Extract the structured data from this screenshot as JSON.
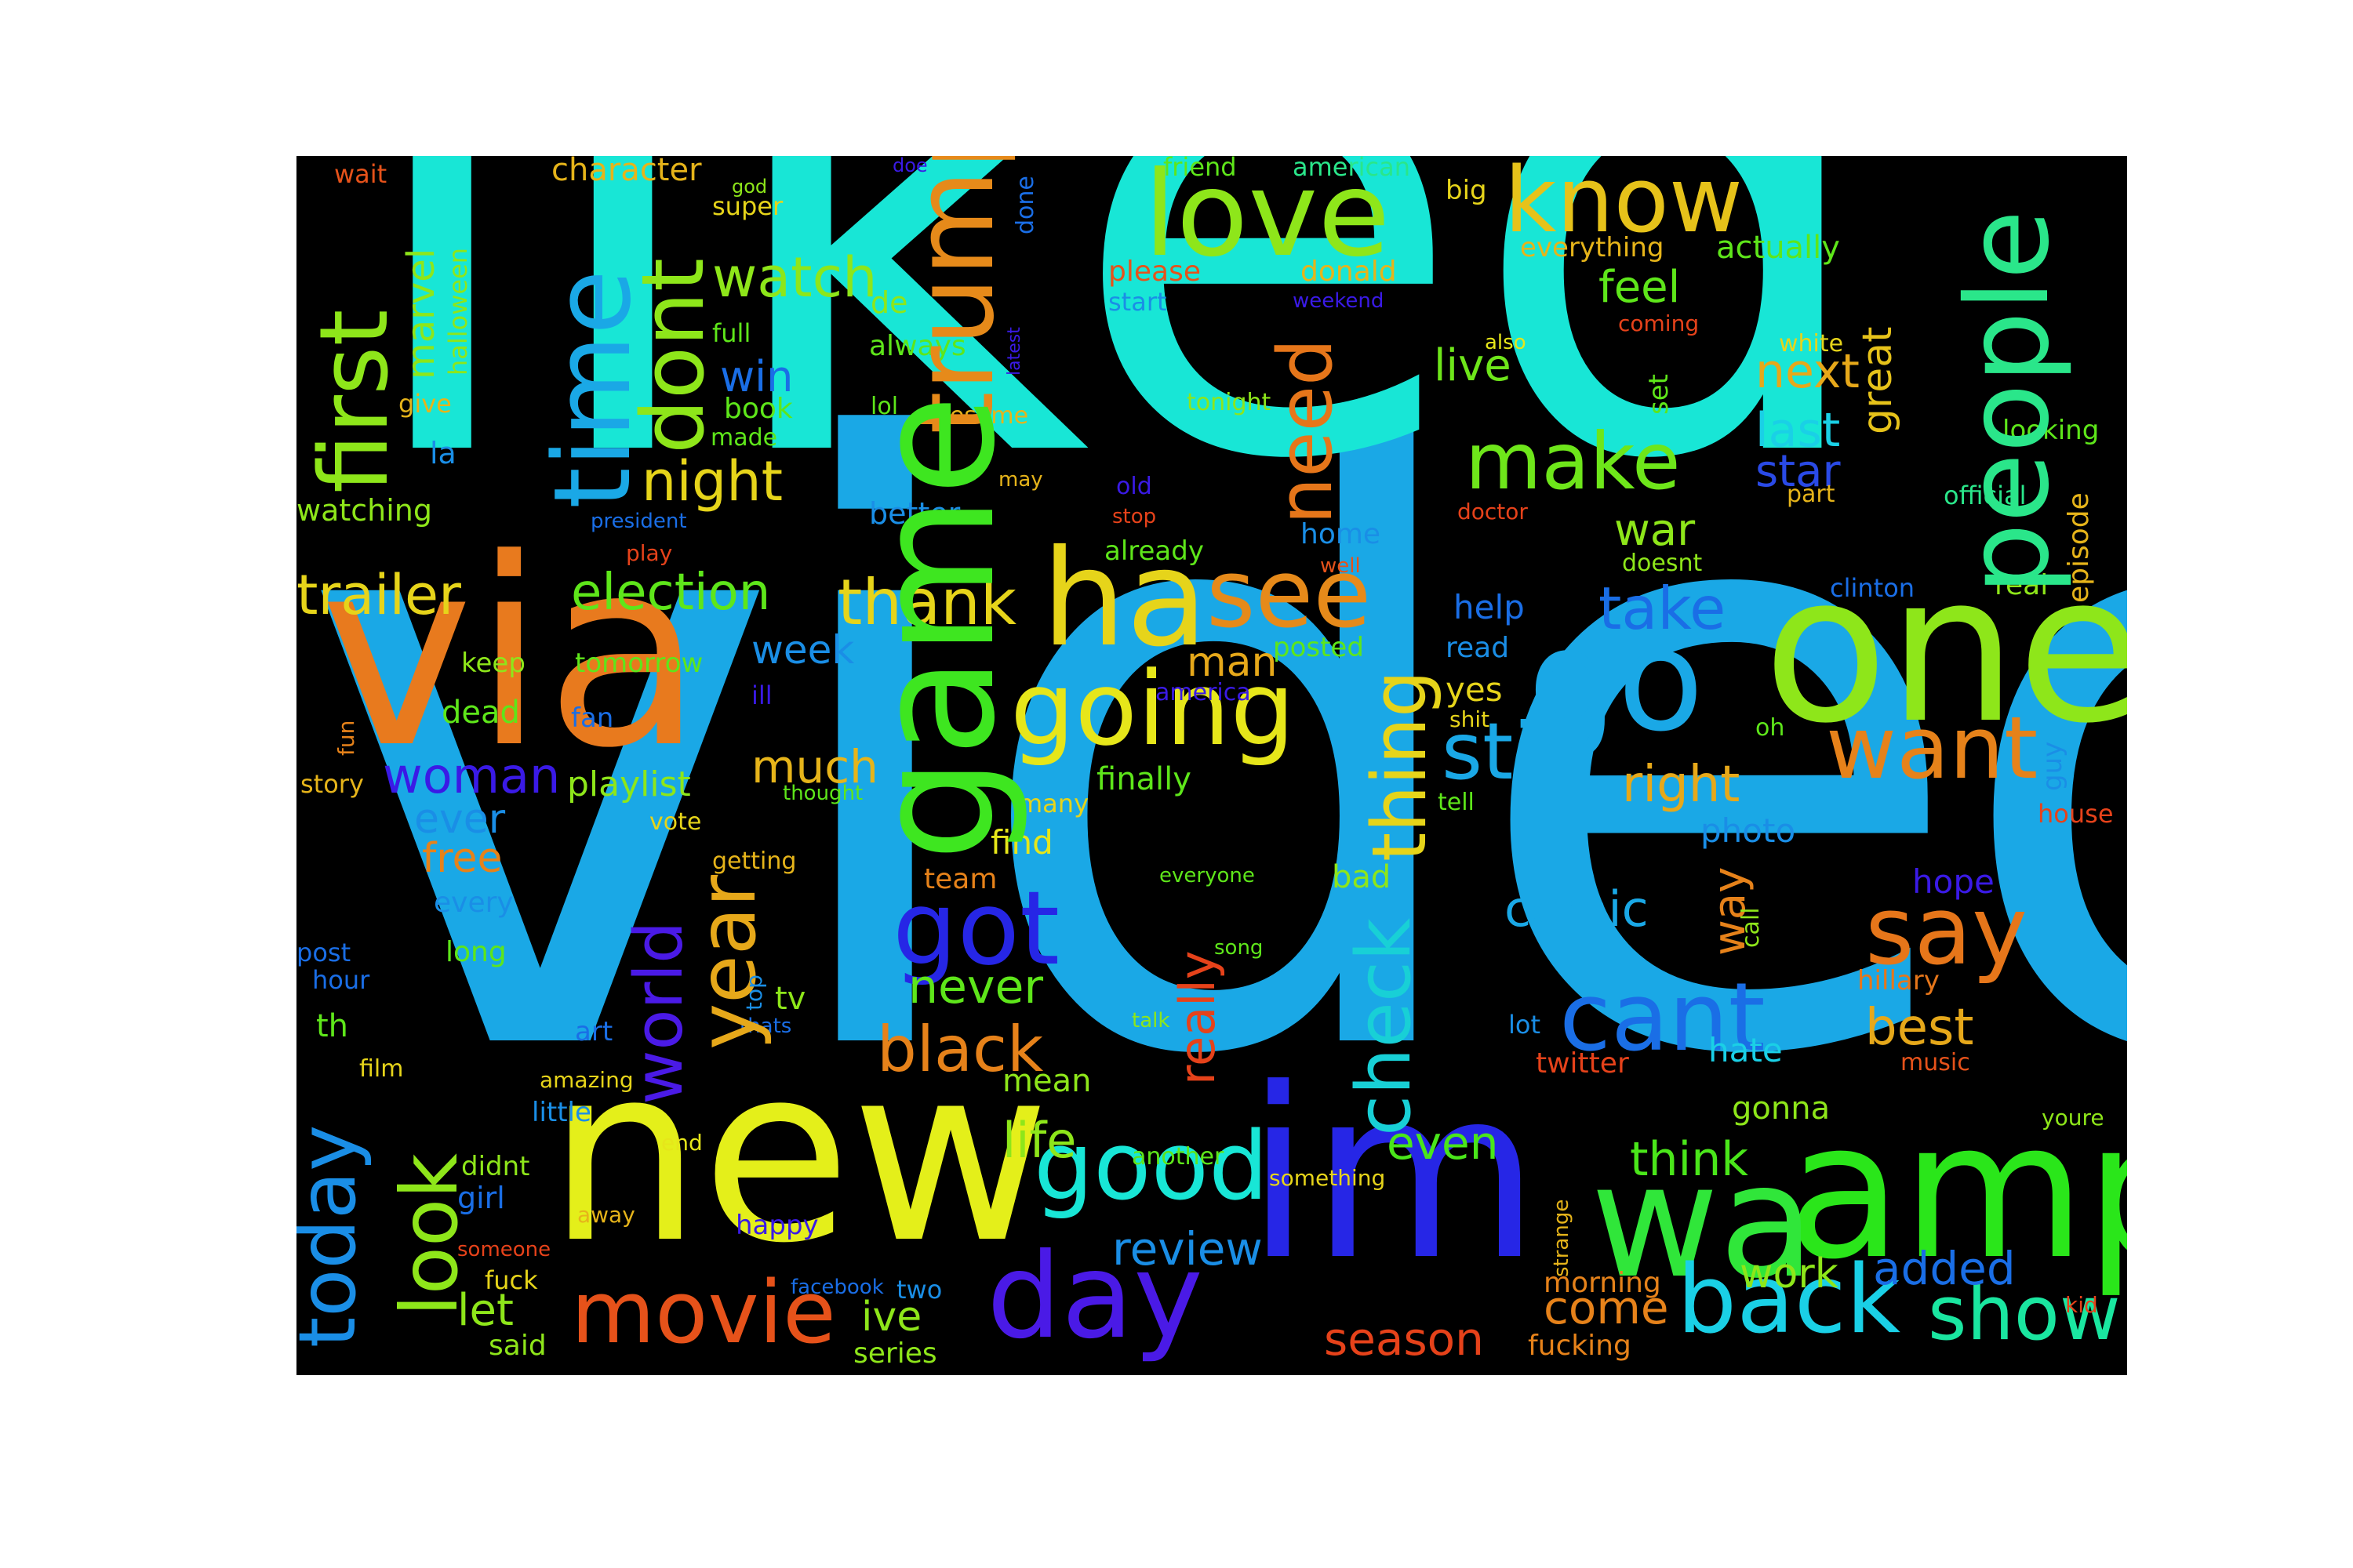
{
  "words": [
    {
      "text": "liked",
      "color": "#18e6d6"
    },
    {
      "text": "video",
      "color": "#1aa8e6"
    },
    {
      "text": "via",
      "color": "#e87a1e"
    },
    {
      "text": "new",
      "color": "#e4ef1a"
    },
    {
      "text": "im",
      "color": "#2626e6"
    },
    {
      "text": "one",
      "color": "#8ee61a"
    },
    {
      "text": "amp",
      "color": "#2ae61a"
    },
    {
      "text": "wa",
      "color": "#3ee620"
    },
    {
      "text": "ha",
      "color": "#30e63a"
    },
    {
      "text": "go",
      "color": "#e6d41a"
    },
    {
      "text": "day",
      "color": "#1aa8e6"
    },
    {
      "text": "love",
      "color": "#4a1ae6"
    },
    {
      "text": "know",
      "color": "#8ee61a"
    },
    {
      "text": "people",
      "color": "#e6c21a"
    },
    {
      "text": "trump",
      "color": "#2ae68a"
    },
    {
      "text": "time",
      "color": "#e68a1a"
    },
    {
      "text": "dont",
      "color": "#1aa8e6"
    },
    {
      "text": "first",
      "color": "#8ee61a"
    },
    {
      "text": "game",
      "color": "#8ee61a"
    },
    {
      "text": "see",
      "color": "#e68a1a"
    },
    {
      "text": "going",
      "color": "#e6e61a"
    },
    {
      "text": "good",
      "color": "#18e6d6"
    },
    {
      "text": "back",
      "color": "#1ad0e6"
    },
    {
      "text": "show",
      "color": "#1ae6a0"
    },
    {
      "text": "movie",
      "color": "#e6521a"
    },
    {
      "text": "cant",
      "color": "#1a6ee6"
    },
    {
      "text": "say",
      "color": "#e6761a"
    },
    {
      "text": "want",
      "color": "#e6821a"
    },
    {
      "text": "got",
      "color": "#2626e6"
    },
    {
      "text": "make",
      "color": "#6ee61a"
    },
    {
      "text": "still",
      "color": "#1aa8e6"
    },
    {
      "text": "thing",
      "color": "#e6d41a"
    },
    {
      "text": "check",
      "color": "#18d0d6"
    },
    {
      "text": "need",
      "color": "#e6761a"
    },
    {
      "text": "today",
      "color": "#1a8ee6"
    },
    {
      "text": "look",
      "color": "#8ee61a"
    },
    {
      "text": "year",
      "color": "#e6a81a"
    },
    {
      "text": "world",
      "color": "#4a1ae6"
    },
    {
      "text": "thank",
      "color": "#e6d41a"
    },
    {
      "text": "take",
      "color": "#1a6ee6"
    },
    {
      "text": "black",
      "color": "#e6821a"
    },
    {
      "text": "night",
      "color": "#e6d41a"
    },
    {
      "text": "watch",
      "color": "#8ee61a"
    },
    {
      "text": "trailer",
      "color": "#e6d41a"
    },
    {
      "text": "election",
      "color": "#5ee61a"
    },
    {
      "text": "woman",
      "color": "#3a1ae6"
    },
    {
      "text": "much",
      "color": "#e6b41a"
    },
    {
      "text": "right",
      "color": "#e6a81a"
    },
    {
      "text": "comic",
      "color": "#1aa8e6"
    },
    {
      "text": "never",
      "color": "#5ee61a"
    },
    {
      "text": "best",
      "color": "#e6a81a"
    },
    {
      "text": "think",
      "color": "#4ae61a"
    },
    {
      "text": "life",
      "color": "#8ee61a"
    },
    {
      "text": "review",
      "color": "#1a8ee6"
    },
    {
      "text": "season",
      "color": "#e6421a"
    },
    {
      "text": "come",
      "color": "#e6821a"
    },
    {
      "text": "added",
      "color": "#1a6ee6"
    },
    {
      "text": "work",
      "color": "#8ee61a"
    },
    {
      "text": "let",
      "color": "#8ee61a"
    },
    {
      "text": "ive",
      "color": "#8ee61a"
    },
    {
      "text": "even",
      "color": "#4ae61a"
    },
    {
      "text": "next",
      "color": "#e6a81a"
    },
    {
      "text": "last",
      "color": "#1ad0e6"
    },
    {
      "text": "star",
      "color": "#2a4ae6"
    },
    {
      "text": "great",
      "color": "#e6c21a"
    },
    {
      "text": "war",
      "color": "#8ee61a"
    },
    {
      "text": "live",
      "color": "#6ee61a"
    },
    {
      "text": "feel",
      "color": "#5ee61a"
    },
    {
      "text": "man",
      "color": "#e6a81a"
    },
    {
      "text": "week",
      "color": "#1a8ee6"
    },
    {
      "text": "win",
      "color": "#1a6ee6"
    },
    {
      "text": "ever",
      "color": "#1a8ee6"
    },
    {
      "text": "free",
      "color": "#e6821a"
    },
    {
      "text": "playlist",
      "color": "#8ee61a"
    },
    {
      "text": "really",
      "color": "#e6421a"
    },
    {
      "text": "way",
      "color": "#e6821a"
    },
    {
      "text": "photo",
      "color": "#1a8ee6"
    },
    {
      "text": "marvel",
      "color": "#8ee61a"
    },
    {
      "text": "halloween",
      "color": "#8ee61a"
    },
    {
      "text": "character",
      "color": "#e6b41a"
    },
    {
      "text": "episode",
      "color": "#e6b41a"
    },
    {
      "text": "tv",
      "color": "#8ee61a"
    },
    {
      "text": "mean",
      "color": "#8ee61a"
    },
    {
      "text": "find",
      "color": "#e6e61a"
    },
    {
      "text": "hope",
      "color": "#3a1ae6"
    },
    {
      "text": "hillary",
      "color": "#e6761a"
    },
    {
      "text": "yes",
      "color": "#e6d41a"
    },
    {
      "text": "help",
      "color": "#1a6ee6"
    },
    {
      "text": "hate",
      "color": "#1ad0e6"
    },
    {
      "text": "gonna",
      "color": "#8ee61a"
    },
    {
      "text": "bad",
      "color": "#8ee61a"
    },
    {
      "text": "finally",
      "color": "#5ee61a"
    },
    {
      "text": "posted",
      "color": "#5ee61a"
    },
    {
      "text": "read",
      "color": "#1a8ee6"
    },
    {
      "text": "twitter",
      "color": "#e6421a"
    },
    {
      "text": "morning",
      "color": "#e6821a"
    },
    {
      "text": "fucking",
      "color": "#e6821a"
    },
    {
      "text": "guy",
      "color": "#1a8ee6"
    },
    {
      "text": "real",
      "color": "#8ee61a"
    },
    {
      "text": "looking",
      "color": "#5ee61a"
    },
    {
      "text": "official",
      "color": "#2ae68a"
    },
    {
      "text": "part",
      "color": "#e6b41a"
    },
    {
      "text": "white",
      "color": "#e6d41a"
    },
    {
      "text": "set",
      "color": "#5ee61a"
    },
    {
      "text": "actually",
      "color": "#5ee61a"
    },
    {
      "text": "everything",
      "color": "#e6b41a"
    },
    {
      "text": "big",
      "color": "#e6d41a"
    },
    {
      "text": "friend",
      "color": "#5ee61a"
    },
    {
      "text": "american",
      "color": "#2ae68a"
    },
    {
      "text": "please",
      "color": "#e6521a"
    },
    {
      "text": "donald",
      "color": "#e6b41a"
    },
    {
      "text": "start",
      "color": "#1a8ee6"
    },
    {
      "text": "weekend",
      "color": "#3a1ae6"
    },
    {
      "text": "tonight",
      "color": "#8ee61a"
    },
    {
      "text": "old",
      "color": "#3a1ae6"
    },
    {
      "text": "stop",
      "color": "#e6421a"
    },
    {
      "text": "already",
      "color": "#5ee61a"
    },
    {
      "text": "home",
      "color": "#1a8ee6"
    },
    {
      "text": "well",
      "color": "#e6521a"
    },
    {
      "text": "doctor",
      "color": "#e6421a"
    },
    {
      "text": "also",
      "color": "#e6e61a"
    },
    {
      "text": "coming",
      "color": "#e6421a"
    },
    {
      "text": "doesnt",
      "color": "#8ee61a"
    },
    {
      "text": "clinton",
      "color": "#1a6ee6"
    },
    {
      "text": "oh",
      "color": "#5ee61a"
    },
    {
      "text": "america",
      "color": "#3a1ae6"
    },
    {
      "text": "shit",
      "color": "#e6d41a"
    },
    {
      "text": "tell",
      "color": "#5ee61a"
    },
    {
      "text": "house",
      "color": "#e6421a"
    },
    {
      "text": "call",
      "color": "#8ee61a"
    },
    {
      "text": "youre",
      "color": "#8ee61a"
    },
    {
      "text": "music",
      "color": "#e6521a"
    },
    {
      "text": "kid",
      "color": "#e6421a"
    },
    {
      "text": "lot",
      "color": "#1a8ee6"
    },
    {
      "text": "strange",
      "color": "#e6b41a"
    },
    {
      "text": "something",
      "color": "#e6d41a"
    },
    {
      "text": "another",
      "color": "#5ee61a"
    },
    {
      "text": "song",
      "color": "#5ee61a"
    },
    {
      "text": "everyone",
      "color": "#5ee61a"
    },
    {
      "text": "talk",
      "color": "#8ee61a"
    },
    {
      "text": "team",
      "color": "#e6821a"
    },
    {
      "text": "many",
      "color": "#e6d41a"
    },
    {
      "text": "thought",
      "color": "#5ee61a"
    },
    {
      "text": "getting",
      "color": "#e6b41a"
    },
    {
      "text": "vote",
      "color": "#e6d41a"
    },
    {
      "text": "every",
      "color": "#1a8ee6"
    },
    {
      "text": "long",
      "color": "#5ee61a"
    },
    {
      "text": "top",
      "color": "#1a8ee6"
    },
    {
      "text": "thats",
      "color": "#1a6ee6"
    },
    {
      "text": "art",
      "color": "#1a6ee6"
    },
    {
      "text": "amazing",
      "color": "#e6d41a"
    },
    {
      "text": "little",
      "color": "#1a8ee6"
    },
    {
      "text": "end",
      "color": "#e6e61a"
    },
    {
      "text": "didnt",
      "color": "#8ee61a"
    },
    {
      "text": "girl",
      "color": "#1a6ee6"
    },
    {
      "text": "away",
      "color": "#e6b41a"
    },
    {
      "text": "happy",
      "color": "#3a1ae6"
    },
    {
      "text": "someone",
      "color": "#e6421a"
    },
    {
      "text": "fuck",
      "color": "#e6d41a"
    },
    {
      "text": "facebook",
      "color": "#1a6ee6"
    },
    {
      "text": "two",
      "color": "#1a8ee6"
    },
    {
      "text": "series",
      "color": "#8ee61a"
    },
    {
      "text": "said",
      "color": "#8ee61a"
    },
    {
      "text": "film",
      "color": "#e6d41a"
    },
    {
      "text": "th",
      "color": "#5ee61a"
    },
    {
      "text": "post",
      "color": "#1a6ee6"
    },
    {
      "text": "hour",
      "color": "#1a6ee6"
    },
    {
      "text": "story",
      "color": "#e6b41a"
    },
    {
      "text": "fun",
      "color": "#e6821a"
    },
    {
      "text": "dead",
      "color": "#5ee61a"
    },
    {
      "text": "fan",
      "color": "#1a6ee6"
    },
    {
      "text": "ill",
      "color": "#3a1ae6"
    },
    {
      "text": "keep",
      "color": "#8ee61a"
    },
    {
      "text": "tomorrow",
      "color": "#5ee61a"
    },
    {
      "text": "watching",
      "color": "#8ee61a"
    },
    {
      "text": "president",
      "color": "#1a6ee6"
    },
    {
      "text": "play",
      "color": "#e6421a"
    },
    {
      "text": "better",
      "color": "#1a8ee6"
    },
    {
      "text": "may",
      "color": "#e6b41a"
    },
    {
      "text": "awesome",
      "color": "#e6b41a"
    },
    {
      "text": "lol",
      "color": "#5ee61a"
    },
    {
      "text": "made",
      "color": "#5ee61a"
    },
    {
      "text": "book",
      "color": "#5ee61a"
    },
    {
      "text": "full",
      "color": "#5ee61a"
    },
    {
      "text": "always",
      "color": "#5ee61a"
    },
    {
      "text": "de",
      "color": "#8ee61a"
    },
    {
      "text": "latest",
      "color": "#3a1ae6"
    },
    {
      "text": "god",
      "color": "#8ee61a"
    },
    {
      "text": "super",
      "color": "#e6d41a"
    },
    {
      "text": "doe",
      "color": "#3a1ae6"
    },
    {
      "text": "done",
      "color": "#1a6ee6"
    },
    {
      "text": "wait",
      "color": "#e6521a"
    },
    {
      "text": "la",
      "color": "#1a8ee6"
    },
    {
      "text": "give",
      "color": "#e6b41a"
    }
  ]
}
